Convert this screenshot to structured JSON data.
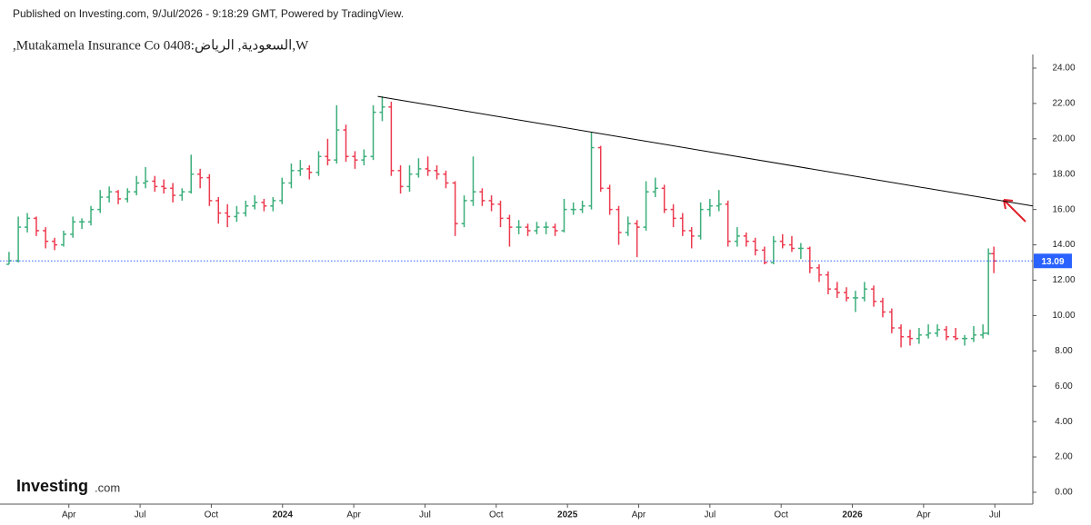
{
  "header": {
    "published": "Published on Investing.com, 9/Jul/2026 - 9:18:29 GMT, Powered by TradingView."
  },
  "branding": {
    "logo": "Investing",
    "logo_suffix": ".com"
  },
  "chart_data": {
    "type": "ohlc",
    "title": ",Mutakamela Insurance Co السعودية, الرياض:0408,W",
    "up_color": "#3bae7a",
    "down_color": "#ec3a4f",
    "xlim": [
      0.1,
      43.6
    ],
    "xticks": [
      {
        "value": 3,
        "label": "Apr"
      },
      {
        "value": 6,
        "label": "Jul"
      },
      {
        "value": 9,
        "label": "Oct"
      },
      {
        "value": 12,
        "label": "2024"
      },
      {
        "value": 15,
        "label": "Apr"
      },
      {
        "value": 18,
        "label": "Jul"
      },
      {
        "value": 21,
        "label": "Oct"
      },
      {
        "value": 24,
        "label": "2025"
      },
      {
        "value": 27,
        "label": "Apr"
      },
      {
        "value": 30,
        "label": "Jul"
      },
      {
        "value": 33,
        "label": "Oct"
      },
      {
        "value": 36,
        "label": "2026"
      },
      {
        "value": 39,
        "label": "Apr"
      },
      {
        "value": 42,
        "label": "Jul"
      }
    ],
    "ylim": [
      -0.67,
      24.77
    ],
    "yticks": [
      {
        "value": 0,
        "label": "0.00"
      },
      {
        "value": 2,
        "label": "2.00"
      },
      {
        "value": 4,
        "label": "4.00"
      },
      {
        "value": 6,
        "label": "6.00"
      },
      {
        "value": 8,
        "label": "8.00"
      },
      {
        "value": 10,
        "label": "10.00"
      },
      {
        "value": 12,
        "label": "12.00"
      },
      {
        "value": 14,
        "label": "14.00"
      },
      {
        "value": 16,
        "label": "16.00"
      },
      {
        "value": 18,
        "label": "18.00"
      },
      {
        "value": 20,
        "label": "20.00"
      },
      {
        "value": 22,
        "label": "22.00"
      },
      {
        "value": 24,
        "label": "24.00"
      }
    ],
    "last_price": 13.09,
    "last_price_color": "#2962ff",
    "trendline": {
      "x": [
        16.01,
        43.6
      ],
      "y": [
        22.4,
        16.2
      ],
      "color": "#000000"
    },
    "x": [
      0.48,
      0.87,
      1.25,
      1.63,
      2.02,
      2.4,
      2.78,
      3.17,
      3.55,
      3.93,
      4.32,
      4.7,
      5.08,
      5.47,
      5.85,
      6.23,
      6.62,
      7.0,
      7.38,
      7.77,
      8.15,
      8.53,
      8.92,
      9.3,
      9.68,
      10.07,
      10.45,
      10.83,
      11.22,
      11.6,
      11.98,
      12.37,
      12.75,
      13.13,
      13.52,
      13.9,
      14.28,
      14.67,
      15.05,
      15.43,
      15.82,
      16.2,
      16.58,
      16.97,
      17.35,
      17.73,
      18.12,
      18.5,
      18.88,
      19.27,
      19.65,
      20.03,
      20.41,
      20.8,
      21.18,
      21.56,
      21.95,
      22.33,
      22.71,
      23.1,
      23.48,
      23.86,
      24.25,
      24.63,
      25.01,
      25.4,
      25.78,
      26.16,
      26.55,
      26.93,
      27.31,
      27.7,
      28.08,
      28.46,
      28.85,
      29.23,
      29.61,
      30.0,
      30.38,
      30.76,
      31.15,
      31.53,
      31.91,
      32.3,
      32.68,
      33.06,
      33.45,
      33.83,
      34.21,
      34.6,
      34.98,
      35.36,
      35.75,
      36.13,
      36.51,
      36.9,
      37.28,
      37.66,
      38.05,
      38.43,
      38.81,
      39.2,
      39.58,
      39.96,
      40.35,
      40.73,
      41.11,
      41.5,
      41.73,
      41.96
    ],
    "ohlc": [
      [
        12.9,
        13.6,
        12.9,
        13.1
      ],
      [
        13.1,
        15.6,
        13.0,
        15.0
      ],
      [
        15.0,
        15.8,
        14.7,
        15.5
      ],
      [
        15.5,
        15.6,
        14.5,
        14.8
      ],
      [
        14.8,
        15.0,
        13.8,
        14.2
      ],
      [
        14.2,
        14.4,
        13.7,
        14.0
      ],
      [
        14.0,
        14.8,
        13.9,
        14.6
      ],
      [
        14.6,
        15.6,
        14.4,
        15.3
      ],
      [
        15.3,
        15.5,
        14.9,
        15.3
      ],
      [
        15.3,
        16.2,
        15.1,
        16.0
      ],
      [
        16.0,
        17.1,
        15.8,
        16.7
      ],
      [
        16.7,
        17.3,
        16.4,
        17.0
      ],
      [
        17.0,
        17.1,
        16.3,
        16.6
      ],
      [
        16.6,
        17.2,
        16.4,
        17.0
      ],
      [
        17.0,
        17.9,
        16.8,
        17.5
      ],
      [
        17.5,
        18.4,
        17.2,
        17.6
      ],
      [
        17.6,
        17.9,
        17.0,
        17.3
      ],
      [
        17.3,
        17.7,
        16.9,
        17.2
      ],
      [
        17.2,
        17.5,
        16.4,
        16.8
      ],
      [
        16.8,
        17.2,
        16.5,
        17.0
      ],
      [
        17.0,
        19.1,
        16.9,
        18.0
      ],
      [
        18.0,
        18.3,
        17.2,
        17.8
      ],
      [
        17.8,
        18.0,
        16.2,
        16.5
      ],
      [
        16.5,
        16.7,
        15.2,
        15.8
      ],
      [
        15.8,
        16.3,
        15.0,
        15.6
      ],
      [
        15.6,
        16.2,
        15.3,
        15.8
      ],
      [
        15.8,
        16.5,
        15.6,
        16.2
      ],
      [
        16.2,
        16.8,
        16.0,
        16.4
      ],
      [
        16.4,
        16.6,
        15.9,
        16.2
      ],
      [
        16.2,
        16.7,
        15.9,
        16.5
      ],
      [
        16.5,
        17.8,
        16.3,
        17.5
      ],
      [
        17.5,
        18.6,
        17.2,
        18.2
      ],
      [
        18.2,
        18.8,
        17.9,
        18.3
      ],
      [
        18.3,
        18.5,
        17.7,
        18.1
      ],
      [
        18.1,
        19.3,
        17.9,
        19.0
      ],
      [
        19.0,
        20.0,
        18.5,
        18.8
      ],
      [
        18.8,
        21.9,
        18.6,
        20.5
      ],
      [
        20.5,
        20.8,
        18.7,
        19.0
      ],
      [
        19.0,
        19.3,
        18.3,
        18.8
      ],
      [
        18.8,
        19.4,
        18.5,
        19.0
      ],
      [
        19.0,
        21.9,
        18.8,
        21.5
      ],
      [
        21.5,
        22.4,
        21.0,
        21.8
      ],
      [
        21.8,
        22.1,
        17.9,
        18.2
      ],
      [
        18.2,
        18.5,
        16.9,
        17.3
      ],
      [
        17.3,
        18.5,
        17.0,
        18.0
      ],
      [
        18.0,
        18.9,
        17.8,
        18.3
      ],
      [
        18.3,
        19.0,
        17.9,
        18.2
      ],
      [
        18.2,
        18.5,
        17.7,
        18.0
      ],
      [
        18.0,
        18.2,
        17.2,
        17.5
      ],
      [
        17.5,
        17.6,
        14.5,
        15.2
      ],
      [
        15.2,
        16.8,
        15.0,
        16.5
      ],
      [
        16.5,
        19.0,
        16.2,
        17.0
      ],
      [
        17.0,
        17.2,
        16.2,
        16.5
      ],
      [
        16.5,
        16.8,
        15.9,
        16.3
      ],
      [
        16.3,
        16.5,
        15.0,
        15.5
      ],
      [
        15.5,
        15.7,
        13.9,
        15.0
      ],
      [
        15.0,
        15.4,
        14.6,
        15.0
      ],
      [
        15.0,
        15.2,
        14.5,
        14.8
      ],
      [
        14.8,
        15.3,
        14.6,
        15.0
      ],
      [
        15.0,
        15.3,
        14.6,
        15.0
      ],
      [
        15.0,
        15.2,
        14.5,
        14.8
      ],
      [
        14.8,
        16.6,
        14.7,
        16.0
      ],
      [
        16.0,
        16.4,
        15.7,
        16.0
      ],
      [
        16.0,
        16.5,
        15.8,
        16.2
      ],
      [
        16.2,
        20.4,
        16.0,
        19.5
      ],
      [
        19.5,
        19.6,
        17.0,
        17.2
      ],
      [
        17.2,
        17.4,
        15.7,
        16.0
      ],
      [
        16.0,
        16.2,
        14.0,
        14.7
      ],
      [
        14.7,
        15.6,
        14.5,
        15.2
      ],
      [
        15.2,
        15.4,
        13.3,
        15.0
      ],
      [
        15.0,
        17.6,
        14.8,
        17.0
      ],
      [
        17.0,
        17.8,
        16.7,
        17.2
      ],
      [
        17.2,
        17.4,
        15.8,
        16.0
      ],
      [
        16.0,
        16.3,
        15.0,
        15.5
      ],
      [
        15.5,
        15.8,
        14.5,
        14.8
      ],
      [
        14.8,
        15.0,
        13.8,
        14.5
      ],
      [
        14.5,
        16.4,
        14.3,
        16.0
      ],
      [
        16.0,
        16.6,
        15.6,
        16.2
      ],
      [
        16.2,
        17.1,
        15.9,
        16.3
      ],
      [
        16.3,
        16.5,
        13.9,
        14.2
      ],
      [
        14.2,
        15.0,
        13.9,
        14.5
      ],
      [
        14.5,
        14.7,
        13.9,
        14.2
      ],
      [
        14.2,
        14.4,
        13.4,
        13.7
      ],
      [
        13.7,
        13.9,
        12.9,
        13.0
      ],
      [
        13.0,
        14.5,
        12.9,
        14.2
      ],
      [
        14.2,
        14.6,
        13.8,
        14.0
      ],
      [
        14.0,
        14.5,
        13.6,
        13.8
      ],
      [
        13.8,
        14.1,
        13.2,
        13.8
      ],
      [
        13.8,
        13.9,
        12.4,
        12.7
      ],
      [
        12.7,
        12.9,
        11.9,
        12.3
      ],
      [
        12.3,
        12.5,
        11.2,
        11.5
      ],
      [
        11.5,
        11.9,
        11.0,
        11.3
      ],
      [
        11.3,
        11.6,
        10.8,
        11.0
      ],
      [
        11.0,
        11.4,
        10.2,
        11.0
      ],
      [
        11.0,
        11.9,
        10.8,
        11.5
      ],
      [
        11.5,
        11.7,
        10.5,
        10.8
      ],
      [
        10.8,
        11.0,
        9.9,
        10.2
      ],
      [
        10.2,
        10.4,
        9.0,
        9.3
      ],
      [
        9.3,
        9.5,
        8.2,
        8.8
      ],
      [
        8.8,
        9.2,
        8.3,
        8.7
      ],
      [
        8.7,
        9.3,
        8.4,
        8.9
      ],
      [
        8.9,
        9.5,
        8.7,
        9.0
      ],
      [
        9.0,
        9.5,
        8.8,
        9.2
      ],
      [
        9.2,
        9.4,
        8.6,
        8.8
      ],
      [
        8.8,
        9.3,
        8.6,
        8.7
      ],
      [
        8.7,
        8.9,
        8.3,
        8.7
      ],
      [
        8.7,
        9.4,
        8.5,
        8.9
      ],
      [
        8.9,
        9.5,
        8.7,
        9.0
      ],
      [
        9.0,
        13.8,
        8.9,
        13.5
      ],
      [
        13.5,
        13.9,
        12.4,
        13.09
      ]
    ]
  }
}
